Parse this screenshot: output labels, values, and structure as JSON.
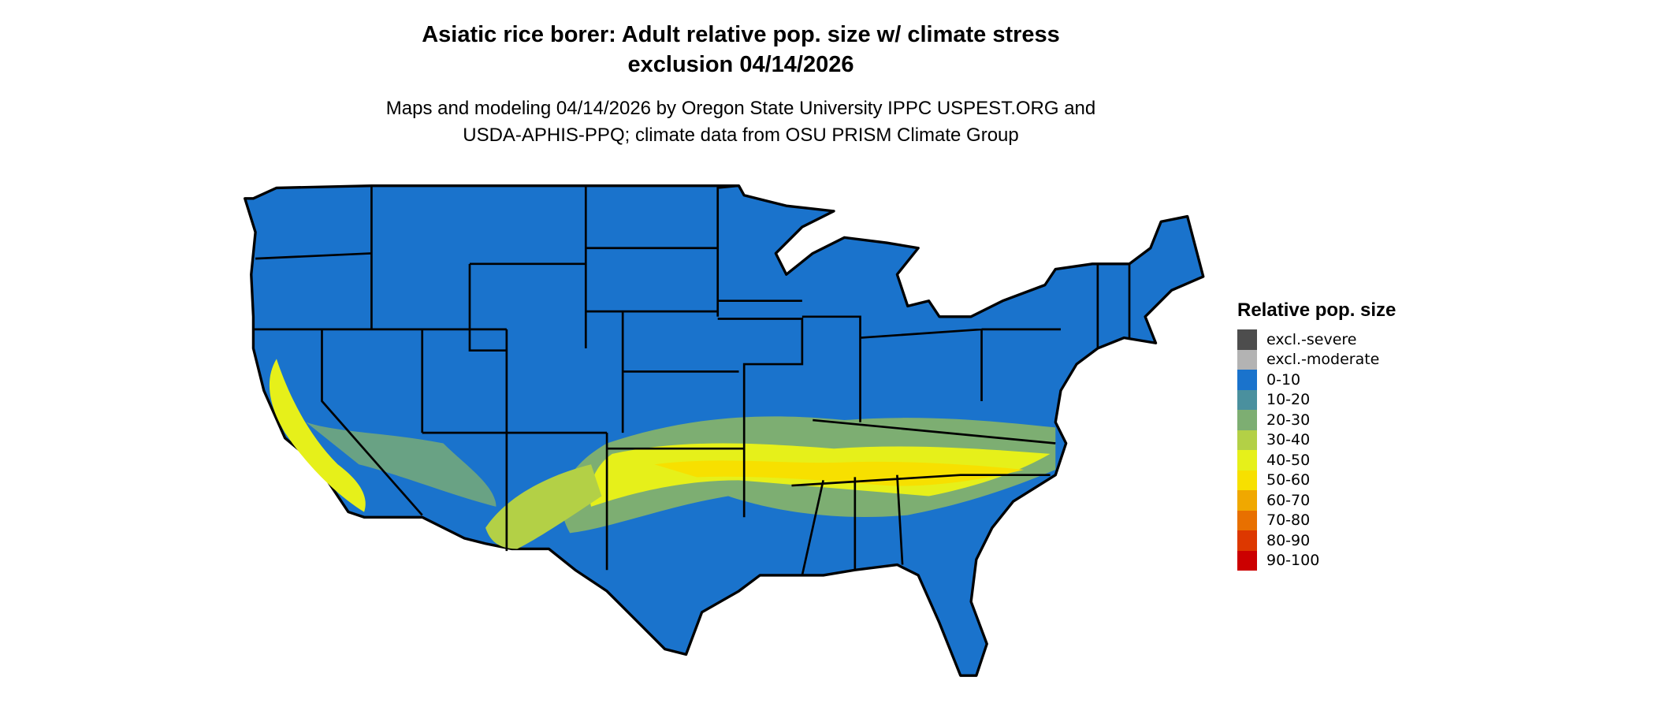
{
  "title_line1": "Asiatic rice borer: Adult relative pop. size w/ climate stress",
  "title_line2": "exclusion 04/14/2026",
  "subtitle_line1": "Maps and modeling 04/14/2026 by Oregon State University IPPC USPEST.ORG and",
  "subtitle_line2": "USDA-APHIS-PPQ; climate data from OSU PRISM Climate Group",
  "legend": {
    "title": "Relative pop. size",
    "items": [
      {
        "label": "excl.-severe",
        "color": "#4d4d4d"
      },
      {
        "label": "excl.-moderate",
        "color": "#b3b3b3"
      },
      {
        "label": "0-10",
        "color": "#1a73cc"
      },
      {
        "label": "10-20",
        "color": "#4a909e"
      },
      {
        "label": "20-30",
        "color": "#7dae72"
      },
      {
        "label": "30-40",
        "color": "#b3d046"
      },
      {
        "label": "40-50",
        "color": "#e6f01a"
      },
      {
        "label": "50-60",
        "color": "#f7e000"
      },
      {
        "label": "60-70",
        "color": "#f0a800"
      },
      {
        "label": "70-80",
        "color": "#e87000"
      },
      {
        "label": "80-90",
        "color": "#dd3800"
      },
      {
        "label": "90-100",
        "color": "#cc0000"
      }
    ]
  },
  "map": {
    "region": "Contiguous United States",
    "base_color": "#1a73cc",
    "border_color": "#000000"
  }
}
